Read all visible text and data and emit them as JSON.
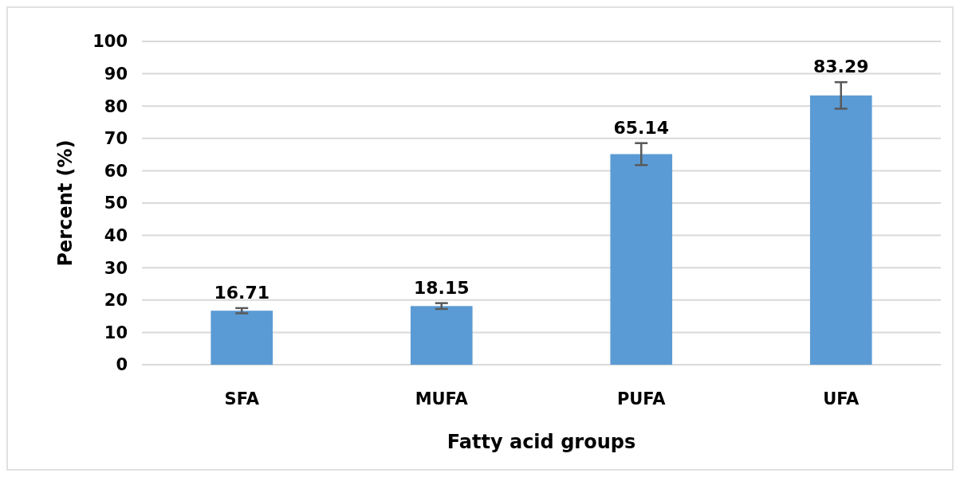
{
  "chart_data": {
    "type": "bar",
    "xlabel": "Fatty acid groups",
    "ylabel": "Percent (%)",
    "categories": [
      "SFA",
      "MUFA",
      "PUFA",
      "UFA"
    ],
    "values": [
      16.71,
      18.15,
      65.14,
      83.29
    ],
    "errors": [
      0.8,
      0.9,
      3.4,
      4.1
    ],
    "color": "#5b9bd5",
    "ylim": [
      0,
      100
    ],
    "yticks": [
      0,
      10,
      20,
      30,
      40,
      50,
      60,
      70,
      80,
      90,
      100
    ],
    "grid": "y",
    "data_labels": true
  }
}
